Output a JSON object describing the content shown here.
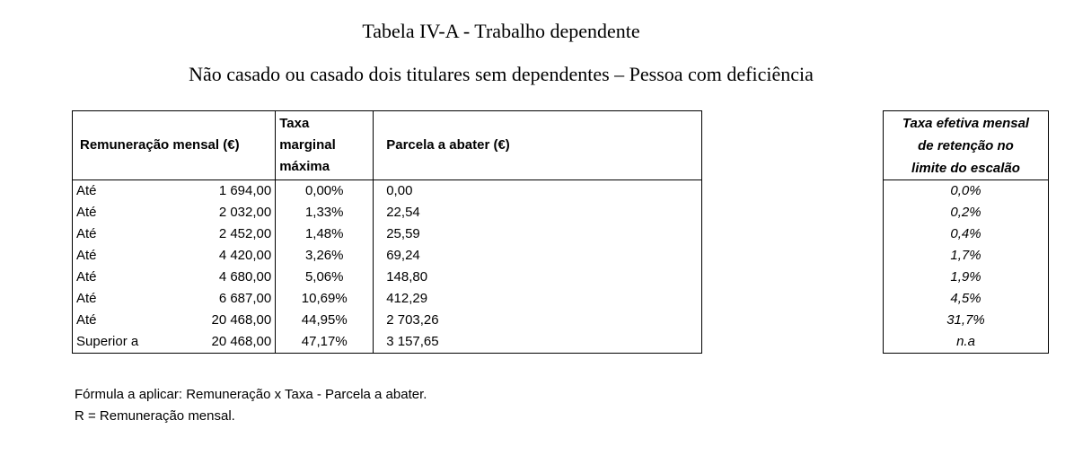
{
  "title": "Tabela IV-A - Trabalho dependente",
  "subtitle": "Não casado ou casado dois titulares sem dependentes – Pessoa com deficiência",
  "main_table": {
    "headers": {
      "remuneration": "Remuneração mensal (€)",
      "rate_line1": "Taxa",
      "rate_line2": "marginal",
      "rate_line3": "máxima",
      "parcel": "Parcela a abater (€)"
    },
    "rows": [
      {
        "label": "Até",
        "amount": "1 694,00",
        "rate": "0,00%",
        "parcel": "0,00"
      },
      {
        "label": "Até",
        "amount": "2 032,00",
        "rate": "1,33%",
        "parcel": "22,54"
      },
      {
        "label": "Até",
        "amount": "2 452,00",
        "rate": "1,48%",
        "parcel": "25,59"
      },
      {
        "label": "Até",
        "amount": "4 420,00",
        "rate": "3,26%",
        "parcel": "69,24"
      },
      {
        "label": "Até",
        "amount": "4 680,00",
        "rate": "5,06%",
        "parcel": "148,80"
      },
      {
        "label": "Até",
        "amount": "6 687,00",
        "rate": "10,69%",
        "parcel": "412,29"
      },
      {
        "label": "Até",
        "amount": "20 468,00",
        "rate": "44,95%",
        "parcel": "2 703,26"
      },
      {
        "label": "Superior a",
        "amount": "20 468,00",
        "rate": "47,17%",
        "parcel": "3 157,65"
      }
    ]
  },
  "side_table": {
    "header_line1": "Taxa efetiva mensal",
    "header_line2": "de retenção no",
    "header_line3": "limite do escalão",
    "values": [
      "0,0%",
      "0,2%",
      "0,4%",
      "1,7%",
      "1,9%",
      "4,5%",
      "31,7%",
      "n.a"
    ]
  },
  "notes": {
    "formula": "Fórmula a aplicar: Remuneração x Taxa - Parcela a abater.",
    "definition": "R = Remuneração mensal."
  }
}
